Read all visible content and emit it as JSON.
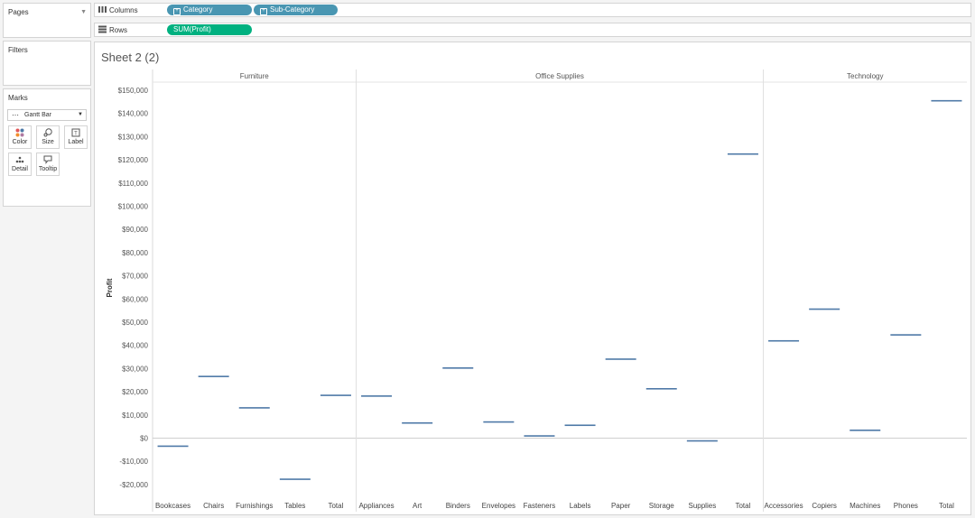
{
  "pages": {
    "title": "Pages"
  },
  "filters": {
    "title": "Filters"
  },
  "marks": {
    "title": "Marks",
    "mark_type": "Gantt Bar",
    "buttons": [
      {
        "label": "Color",
        "icon": "color-dots-icon"
      },
      {
        "label": "Size",
        "icon": "size-icon"
      },
      {
        "label": "Label",
        "icon": "label-icon"
      },
      {
        "label": "Detail",
        "icon": "detail-icon"
      },
      {
        "label": "Tooltip",
        "icon": "tooltip-icon"
      }
    ]
  },
  "shelves": {
    "columns": {
      "label": "Columns",
      "pills": [
        "Category",
        "Sub-Category"
      ]
    },
    "rows": {
      "label": "Rows",
      "pills": [
        "SUM(Profit)"
      ]
    }
  },
  "sheet": {
    "title": "Sheet 2 (2)"
  },
  "colors": {
    "pill_dimension": "#4996b2",
    "pill_measure": "#00b180",
    "mark": "#4e79a7"
  },
  "chart_data": {
    "type": "gantt",
    "ylabel": "Profit",
    "ylim": [
      -25000,
      152000
    ],
    "yticks": [
      -20000,
      -10000,
      0,
      10000,
      20000,
      30000,
      40000,
      50000,
      60000,
      70000,
      80000,
      90000,
      100000,
      110000,
      120000,
      130000,
      140000,
      150000
    ],
    "ytick_labels": [
      "-$20,000",
      "-$10,000",
      "$0",
      "$10,000",
      "$20,000",
      "$30,000",
      "$40,000",
      "$50,000",
      "$60,000",
      "$70,000",
      "$80,000",
      "$90,000",
      "$100,000",
      "$110,000",
      "$120,000",
      "$130,000",
      "$140,000",
      "$150,000"
    ],
    "groups": [
      {
        "name": "Furniture",
        "categories": [
          "Bookcases",
          "Chairs",
          "Furnishings",
          "Tables",
          "Total"
        ],
        "values": [
          -3473,
          26590,
          13059,
          -17725,
          18451
        ]
      },
      {
        "name": "Office Supplies",
        "categories": [
          "Appliances",
          "Art",
          "Binders",
          "Envelopes",
          "Fasteners",
          "Labels",
          "Paper",
          "Storage",
          "Supplies",
          "Total"
        ],
        "values": [
          18138,
          6528,
          30222,
          6964,
          950,
          5546,
          34054,
          21279,
          -1189,
          122491
        ]
      },
      {
        "name": "Technology",
        "categories": [
          "Accessories",
          "Copiers",
          "Machines",
          "Phones",
          "Total"
        ],
        "values": [
          41937,
          55618,
          3385,
          44516,
          145455
        ]
      }
    ]
  }
}
